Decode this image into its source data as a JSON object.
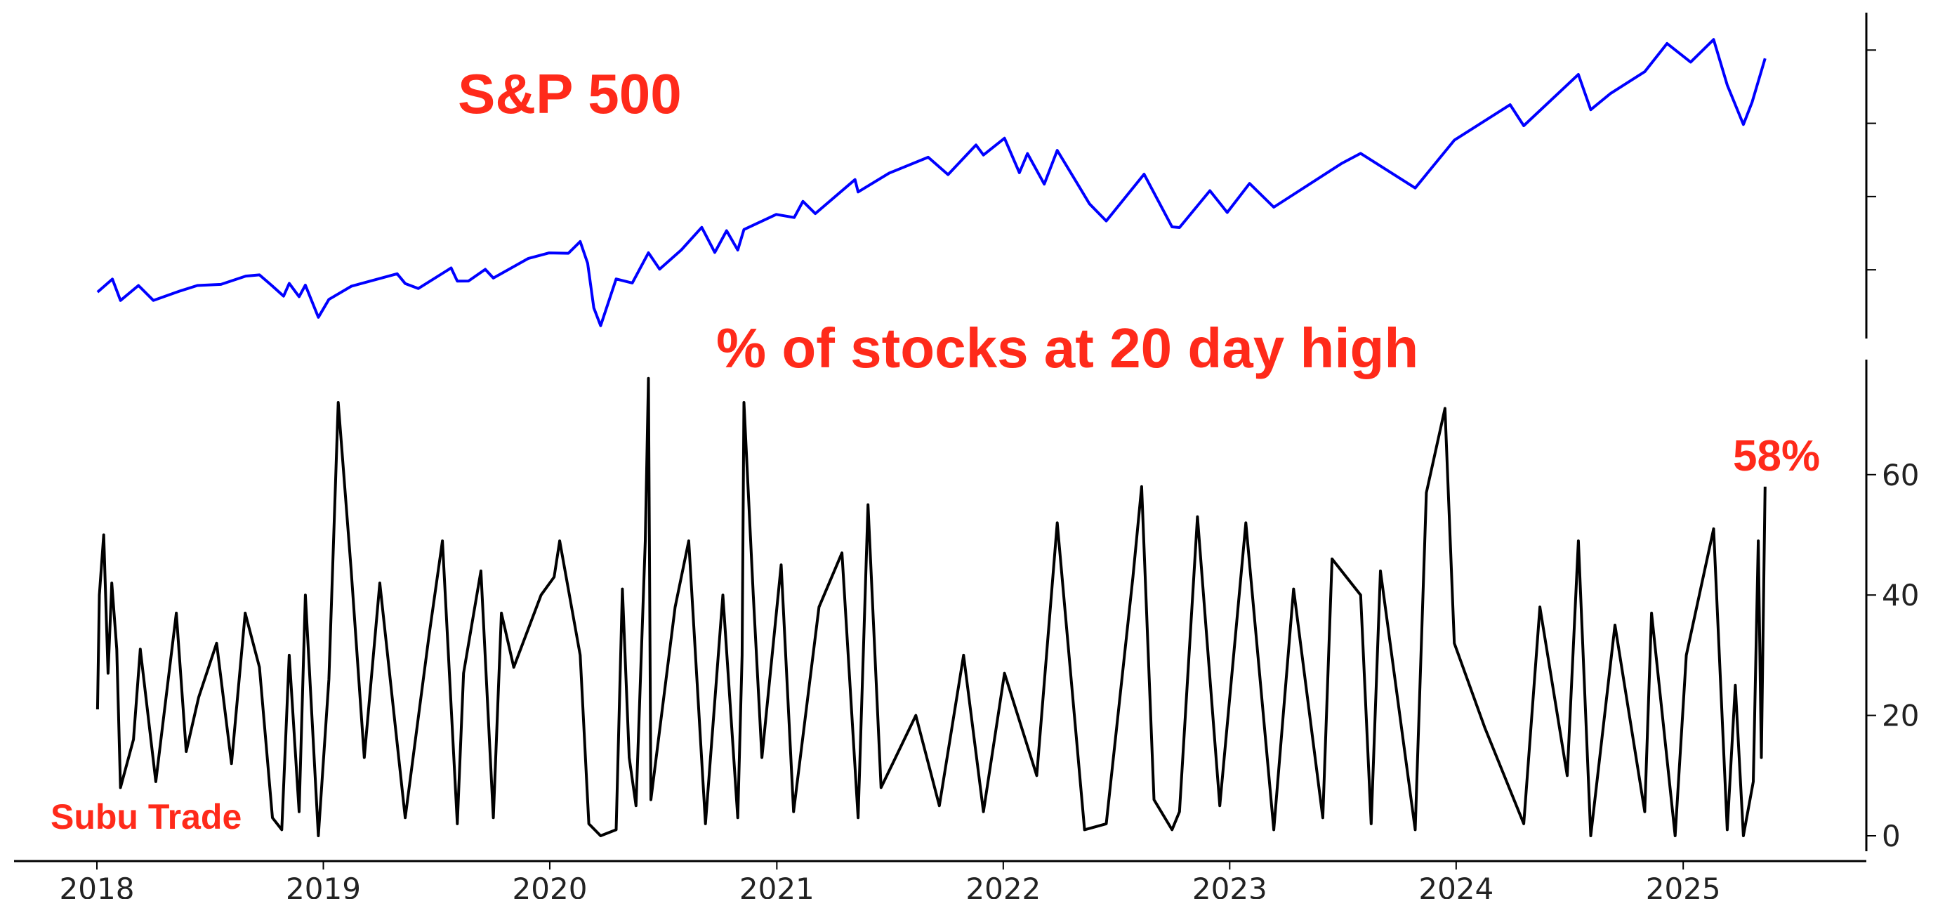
{
  "annotations": {
    "top_title": "S&P 500",
    "bottom_title": "% of stocks at 20 day high",
    "brand": "Subu Trade",
    "latest_callout": "58%"
  },
  "colors": {
    "sp500_line": "#0000ff",
    "pct_line": "#000000",
    "annotation_red": "#ff2a1a",
    "axis": "#000000"
  },
  "chart_data": [
    {
      "type": "line",
      "title": "S&P 500",
      "xlabel": "",
      "ylabel": "",
      "x_range": [
        "2018-01-01",
        "2025-05-20"
      ],
      "y_range": [
        2100,
        6300
      ],
      "y_tick_values": [
        3000,
        4000,
        5000,
        6000
      ],
      "y_axis_side": "right",
      "y_tick_labels_visible": false,
      "grid": false,
      "legend": "none",
      "series": [
        {
          "values": [
            [
              "2018-01-02",
              2695
            ],
            [
              "2018-01-26",
              2873
            ],
            [
              "2018-02-08",
              2581
            ],
            [
              "2018-03-09",
              2786
            ],
            [
              "2018-04-02",
              2582
            ],
            [
              "2018-05-15",
              2711
            ],
            [
              "2018-06-12",
              2786
            ],
            [
              "2018-07-20",
              2801
            ],
            [
              "2018-08-29",
              2914
            ],
            [
              "2018-09-20",
              2930
            ],
            [
              "2018-10-10",
              2785
            ],
            [
              "2018-10-29",
              2641
            ],
            [
              "2018-11-07",
              2814
            ],
            [
              "2018-11-23",
              2633
            ],
            [
              "2018-12-03",
              2790
            ],
            [
              "2018-12-24",
              2351
            ],
            [
              "2019-01-10",
              2596
            ],
            [
              "2019-02-15",
              2775
            ],
            [
              "2019-04-30",
              2946
            ],
            [
              "2019-05-13",
              2812
            ],
            [
              "2019-06-03",
              2744
            ],
            [
              "2019-07-26",
              3025
            ],
            [
              "2019-08-05",
              2845
            ],
            [
              "2019-08-23",
              2847
            ],
            [
              "2019-09-19",
              3006
            ],
            [
              "2019-10-02",
              2887
            ],
            [
              "2019-11-27",
              3154
            ],
            [
              "2019-12-31",
              3231
            ],
            [
              "2020-01-31",
              3226
            ],
            [
              "2020-02-19",
              3386
            ],
            [
              "2020-03-02",
              3090
            ],
            [
              "2020-03-12",
              2480
            ],
            [
              "2020-03-23",
              2237
            ],
            [
              "2020-04-17",
              2875
            ],
            [
              "2020-05-13",
              2820
            ],
            [
              "2020-06-08",
              3232
            ],
            [
              "2020-06-26",
              3009
            ],
            [
              "2020-07-31",
              3271
            ],
            [
              "2020-09-02",
              3580
            ],
            [
              "2020-09-23",
              3237
            ],
            [
              "2020-10-12",
              3534
            ],
            [
              "2020-10-30",
              3270
            ],
            [
              "2020-11-09",
              3550
            ],
            [
              "2020-12-31",
              3756
            ],
            [
              "2021-01-29",
              3714
            ],
            [
              "2021-02-12",
              3934
            ],
            [
              "2021-03-04",
              3768
            ],
            [
              "2021-05-07",
              4232
            ],
            [
              "2021-05-12",
              4063
            ],
            [
              "2021-07-01",
              4320
            ],
            [
              "2021-09-02",
              4537
            ],
            [
              "2021-10-04",
              4300
            ],
            [
              "2021-11-18",
              4704
            ],
            [
              "2021-11-30",
              4567
            ],
            [
              "2022-01-03",
              4796
            ],
            [
              "2022-01-27",
              4326
            ],
            [
              "2022-02-09",
              4587
            ],
            [
              "2022-03-08",
              4170
            ],
            [
              "2022-03-29",
              4631
            ],
            [
              "2022-05-02",
              4155
            ],
            [
              "2022-05-20",
              3901
            ],
            [
              "2022-06-16",
              3667
            ],
            [
              "2022-08-16",
              4305
            ],
            [
              "2022-09-30",
              3586
            ],
            [
              "2022-10-12",
              3577
            ],
            [
              "2022-11-30",
              4080
            ],
            [
              "2022-12-28",
              3783
            ],
            [
              "2023-02-02",
              4179
            ],
            [
              "2023-03-13",
              3855
            ],
            [
              "2023-06-30",
              4450
            ],
            [
              "2023-07-31",
              4589
            ],
            [
              "2023-10-27",
              4117
            ],
            [
              "2023-12-29",
              4770
            ],
            [
              "2024-03-28",
              5254
            ],
            [
              "2024-04-19",
              4967
            ],
            [
              "2024-07-16",
              5667
            ],
            [
              "2024-08-05",
              5186
            ],
            [
              "2024-09-06",
              5408
            ],
            [
              "2024-10-31",
              5705
            ],
            [
              "2024-12-06",
              6090
            ],
            [
              "2025-01-13",
              5836
            ],
            [
              "2025-02-19",
              6144
            ],
            [
              "2025-03-13",
              5522
            ],
            [
              "2025-04-08",
              4983
            ],
            [
              "2025-04-22",
              5288
            ],
            [
              "2025-05-13",
              5886
            ]
          ]
        }
      ]
    },
    {
      "type": "line",
      "title": "% of stocks at 20 day high",
      "xlabel": "",
      "ylabel": "",
      "x_tick_labels": [
        "2018",
        "2019",
        "2020",
        "2021",
        "2022",
        "2023",
        "2024",
        "2025"
      ],
      "x_range": [
        "2018-01-01",
        "2025-05-20"
      ],
      "y_tick_labels": [
        "0",
        "20",
        "40",
        "60"
      ],
      "y_range": [
        0,
        76
      ],
      "y_axis_side": "right",
      "grid": false,
      "legend": "none",
      "series": [
        {
          "values": [
            [
              "2018-01-02",
              21
            ],
            [
              "2018-01-05",
              40
            ],
            [
              "2018-01-12",
              50
            ],
            [
              "2018-01-19",
              27
            ],
            [
              "2018-01-25",
              42
            ],
            [
              "2018-02-02",
              31
            ],
            [
              "2018-02-08",
              8
            ],
            [
              "2018-03-01",
              16
            ],
            [
              "2018-03-12",
              31
            ],
            [
              "2018-04-06",
              9
            ],
            [
              "2018-05-09",
              37
            ],
            [
              "2018-05-25",
              14
            ],
            [
              "2018-06-14",
              23
            ],
            [
              "2018-07-13",
              32
            ],
            [
              "2018-08-06",
              12
            ],
            [
              "2018-08-28",
              37
            ],
            [
              "2018-09-20",
              28
            ],
            [
              "2018-10-11",
              3
            ],
            [
              "2018-10-26",
              1
            ],
            [
              "2018-11-07",
              30
            ],
            [
              "2018-11-23",
              4
            ],
            [
              "2018-12-03",
              40
            ],
            [
              "2018-12-24",
              0
            ],
            [
              "2019-01-10",
              26
            ],
            [
              "2019-01-25",
              72
            ],
            [
              "2019-02-15",
              44
            ],
            [
              "2019-03-08",
              13
            ],
            [
              "2019-04-02",
              42
            ],
            [
              "2019-05-13",
              3
            ],
            [
              "2019-06-20",
              33
            ],
            [
              "2019-07-12",
              49
            ],
            [
              "2019-08-05",
              2
            ],
            [
              "2019-08-15",
              27
            ],
            [
              "2019-09-12",
              44
            ],
            [
              "2019-10-02",
              3
            ],
            [
              "2019-10-15",
              37
            ],
            [
              "2019-11-04",
              28
            ],
            [
              "2019-12-18",
              40
            ],
            [
              "2020-01-08",
              43
            ],
            [
              "2020-01-17",
              49
            ],
            [
              "2020-02-19",
              30
            ],
            [
              "2020-03-04",
              2
            ],
            [
              "2020-03-23",
              0
            ],
            [
              "2020-04-17",
              1
            ],
            [
              "2020-04-27",
              41
            ],
            [
              "2020-05-08",
              13
            ],
            [
              "2020-05-19",
              5
            ],
            [
              "2020-06-03",
              49
            ],
            [
              "2020-06-08",
              76
            ],
            [
              "2020-06-12",
              6
            ],
            [
              "2020-07-21",
              38
            ],
            [
              "2020-08-12",
              49
            ],
            [
              "2020-09-08",
              2
            ],
            [
              "2020-10-06",
              40
            ],
            [
              "2020-10-30",
              3
            ],
            [
              "2020-11-06",
              30
            ],
            [
              "2020-11-09",
              72
            ],
            [
              "2020-11-24",
              40
            ],
            [
              "2020-12-08",
              13
            ],
            [
              "2021-01-08",
              45
            ],
            [
              "2021-01-28",
              4
            ],
            [
              "2021-03-10",
              38
            ],
            [
              "2021-04-16",
              47
            ],
            [
              "2021-05-12",
              3
            ],
            [
              "2021-05-28",
              55
            ],
            [
              "2021-06-18",
              8
            ],
            [
              "2021-08-13",
              20
            ],
            [
              "2021-09-20",
              5
            ],
            [
              "2021-10-29",
              30
            ],
            [
              "2021-11-30",
              4
            ],
            [
              "2022-01-03",
              27
            ],
            [
              "2022-02-24",
              10
            ],
            [
              "2022-03-29",
              52
            ],
            [
              "2022-05-12",
              1
            ],
            [
              "2022-06-16",
              2
            ],
            [
              "2022-07-29",
              43
            ],
            [
              "2022-08-12",
              58
            ],
            [
              "2022-09-01",
              6
            ],
            [
              "2022-09-30",
              1
            ],
            [
              "2022-10-12",
              4
            ],
            [
              "2022-11-10",
              53
            ],
            [
              "2022-12-16",
              5
            ],
            [
              "2023-01-27",
              52
            ],
            [
              "2023-03-13",
              1
            ],
            [
              "2023-04-14",
              41
            ],
            [
              "2023-05-31",
              3
            ],
            [
              "2023-06-15",
              46
            ],
            [
              "2023-07-31",
              40
            ],
            [
              "2023-08-17",
              2
            ],
            [
              "2023-09-01",
              44
            ],
            [
              "2023-10-27",
              1
            ],
            [
              "2023-11-14",
              57
            ],
            [
              "2023-12-14",
              71
            ],
            [
              "2023-12-29",
              32
            ],
            [
              "2024-02-16",
              18
            ],
            [
              "2024-04-19",
              2
            ],
            [
              "2024-05-15",
              38
            ],
            [
              "2024-06-28",
              10
            ],
            [
              "2024-07-16",
              49
            ],
            [
              "2024-08-05",
              0
            ],
            [
              "2024-09-13",
              35
            ],
            [
              "2024-10-31",
              4
            ],
            [
              "2024-11-11",
              37
            ],
            [
              "2024-12-19",
              0
            ],
            [
              "2025-01-06",
              30
            ],
            [
              "2025-02-19",
              51
            ],
            [
              "2025-03-13",
              1
            ],
            [
              "2025-03-26",
              25
            ],
            [
              "2025-04-08",
              0
            ],
            [
              "2025-04-24",
              9
            ],
            [
              "2025-05-02",
              49
            ],
            [
              "2025-05-07",
              13
            ],
            [
              "2025-05-13",
              58
            ]
          ]
        }
      ]
    }
  ]
}
